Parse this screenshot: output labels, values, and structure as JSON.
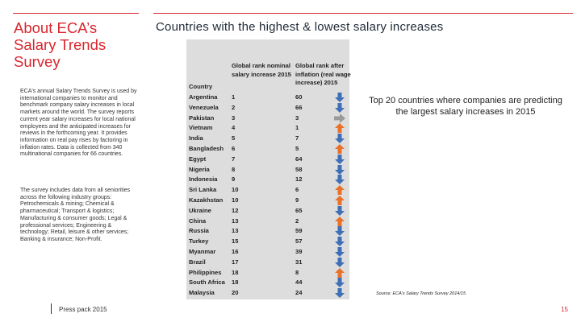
{
  "sidebar": {
    "title_lines": [
      "About ECA’s",
      "Salary Trends",
      "Survey"
    ],
    "intro_paragraph": "ECA's annual Salary Trends Survey is used by international companies to monitor and benchmark company salary increases in local markets around the world. The survey reports current year salary increases for local national employees and the anticipated increases for reviews in the forthcoming year. It provides information on real pay rises by factoring in inflation rates. Data is collected from 340 multinational companies for 66 countries.",
    "sectors_paragraph": "The survey includes data from all seniorities across the following industry groups: Petrochemicals & mining; Chemical & pharmaceutical; Transport & logistics; Manufacturing & consumer goods; Legal & professional services; Engineering & technology; Retail, leisure & other services; Banking & insurance; Non-Profit."
  },
  "main": {
    "title": "Countries with the highest & lowest salary increases",
    "callout": "Top 20 countries where companies are predicting the largest salary increases in 2015",
    "source": "Source: ECA's Salary Trends Survey 2014/15"
  },
  "table": {
    "header_country": "Country",
    "header_nominal": "Global rank nominal salary increase 2015",
    "header_real": "Global rank after inflation (real wage increase) 2015",
    "colors": {
      "down": "#3f6fb5",
      "up": "#e8722a",
      "same": "#9a9a9a"
    },
    "rows": [
      {
        "country": "Argentina",
        "nominal": "1",
        "real": "60",
        "trend": "down"
      },
      {
        "country": "Venezuela",
        "nominal": "2",
        "real": "66",
        "trend": "down"
      },
      {
        "country": "Pakistan",
        "nominal": "3",
        "real": "3",
        "trend": "same"
      },
      {
        "country": "Vietnam",
        "nominal": "4",
        "real": "1",
        "trend": "up"
      },
      {
        "country": "India",
        "nominal": "5",
        "real": "7",
        "trend": "down"
      },
      {
        "country": "Bangladesh",
        "nominal": "6",
        "real": "5",
        "trend": "up"
      },
      {
        "country": "Egypt",
        "nominal": "7",
        "real": "64",
        "trend": "down"
      },
      {
        "country": "Nigeria",
        "nominal": "8",
        "real": "58",
        "trend": "down"
      },
      {
        "country": "Indonesia",
        "nominal": "9",
        "real": "12",
        "trend": "down"
      },
      {
        "country": "Sri Lanka",
        "nominal": "10",
        "real": "6",
        "trend": "up"
      },
      {
        "country": "Kazakhstan",
        "nominal": "10",
        "real": "9",
        "trend": "up"
      },
      {
        "country": "Ukraine",
        "nominal": "12",
        "real": "65",
        "trend": "down"
      },
      {
        "country": "China",
        "nominal": "13",
        "real": "2",
        "trend": "up"
      },
      {
        "country": "Russia",
        "nominal": "13",
        "real": "59",
        "trend": "down"
      },
      {
        "country": "Turkey",
        "nominal": "15",
        "real": "57",
        "trend": "down"
      },
      {
        "country": "Myanmar",
        "nominal": "16",
        "real": "39",
        "trend": "down"
      },
      {
        "country": "Brazil",
        "nominal": "17",
        "real": "31",
        "trend": "down"
      },
      {
        "country": "Philippines",
        "nominal": "18",
        "real": "8",
        "trend": "up"
      },
      {
        "country": "South Africa",
        "nominal": "18",
        "real": "44",
        "trend": "down"
      },
      {
        "country": "Malaysia",
        "nominal": "20",
        "real": "24",
        "trend": "down"
      }
    ]
  },
  "footer": {
    "label": "Press pack 2015",
    "page_number": "15"
  }
}
